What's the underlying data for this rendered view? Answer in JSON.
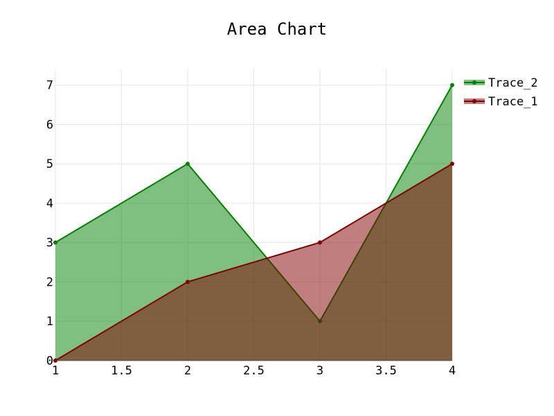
{
  "chart_data": {
    "type": "area",
    "title": "Area Chart",
    "xlabel": "",
    "ylabel": "",
    "x_ticks": [
      "1",
      "1.5",
      "2",
      "2.5",
      "3",
      "3.5",
      "4"
    ],
    "y_ticks": [
      "0",
      "1",
      "2",
      "3",
      "4",
      "5",
      "6",
      "7"
    ],
    "xlim": [
      1,
      4
    ],
    "ylim": [
      0,
      7.4
    ],
    "grid": true,
    "legend_position": "top-right",
    "series": [
      {
        "name": "Trace_1",
        "x": [
          1,
          2,
          3,
          4
        ],
        "y": [
          0,
          2,
          3,
          5
        ],
        "line_color": "#800000",
        "fill_color": "#800000"
      },
      {
        "name": "Trace_2",
        "x": [
          1,
          2,
          3,
          4
        ],
        "y": [
          3,
          5,
          1,
          7
        ],
        "line_color": "#008000",
        "fill_color": "#008000"
      }
    ],
    "legend_order": [
      "Trace_2",
      "Trace_1"
    ]
  }
}
